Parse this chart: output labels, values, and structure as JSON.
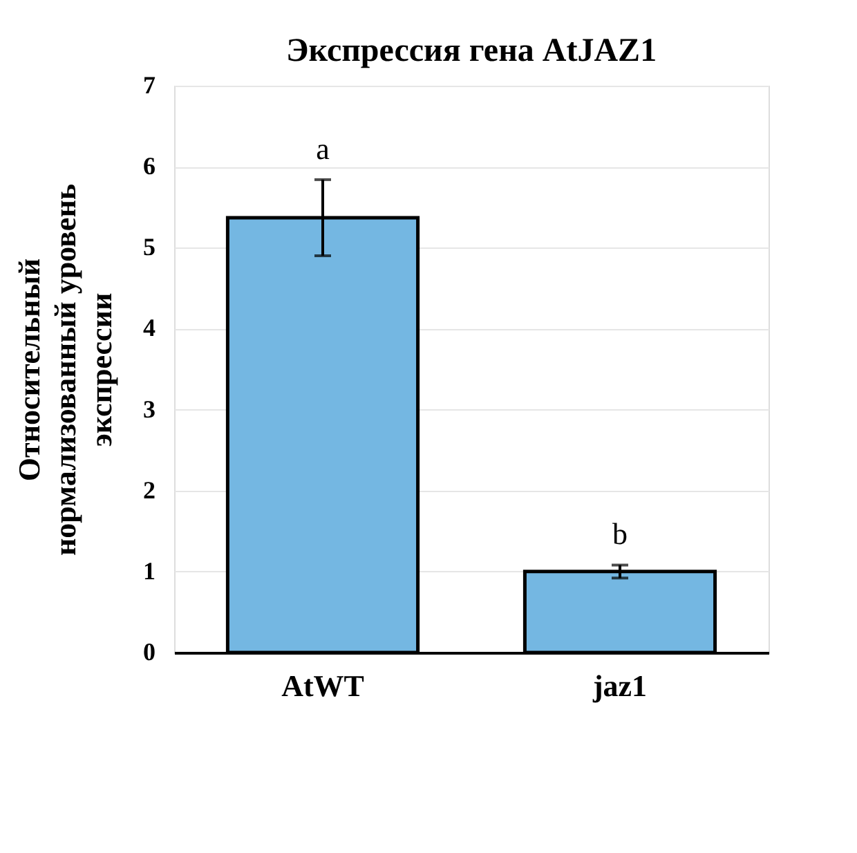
{
  "chart_data": {
    "type": "bar",
    "title": "Экспрессия гена AtJAZ1",
    "ylabel": "Относительный\nнормализованный уровень\nэкспрессии",
    "categories": [
      "AtWT",
      "jaz1"
    ],
    "series": [
      {
        "color": "#74b7e2",
        "values": [
          5.37,
          1.0
        ],
        "errors": [
          0.47,
          0.08
        ]
      }
    ],
    "ylim": [
      0,
      7
    ],
    "yticks": [
      0,
      1,
      2,
      3,
      4,
      5,
      6,
      7
    ],
    "grid": "y",
    "annotations": [
      "a",
      "b"
    ]
  }
}
